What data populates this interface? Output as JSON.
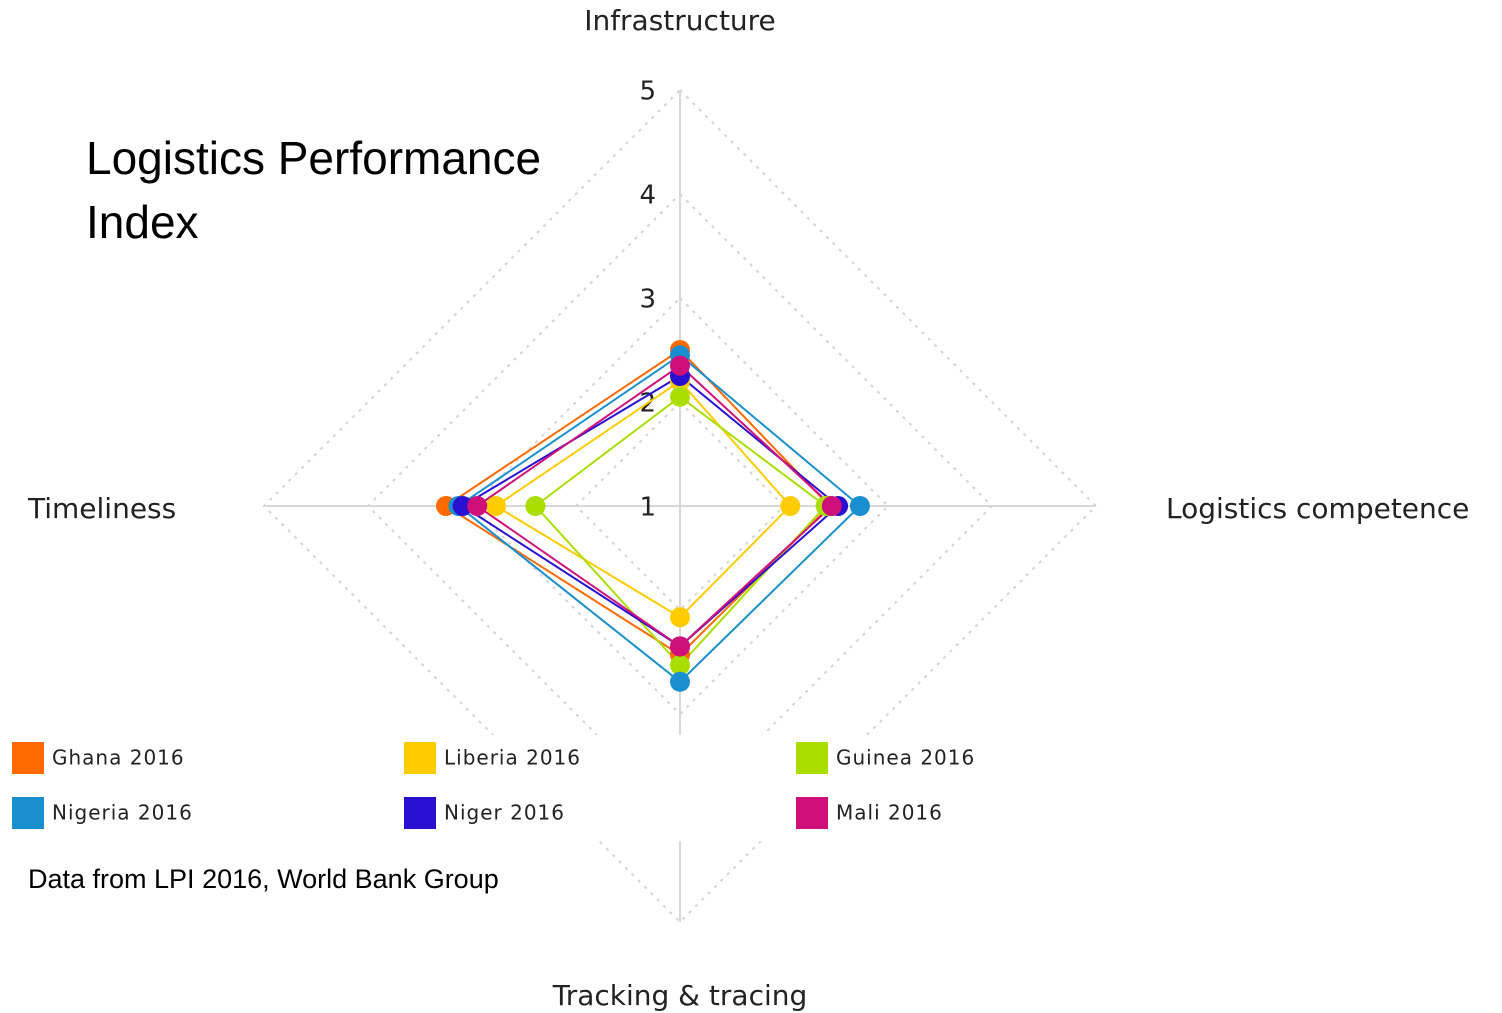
{
  "chart_data": {
    "type": "radar",
    "title": "Logistics Performance Index",
    "source": "Data from LPI 2016, World Bank Group",
    "categories": [
      "Infrastructure",
      "Logistics competence",
      "Tracking & tracing",
      "Timeliness"
    ],
    "rlim": [
      1,
      5
    ],
    "rticks": [
      1,
      2,
      3,
      4,
      5
    ],
    "grid": true,
    "series": [
      {
        "name": "Ghana 2016",
        "color": "#ff6a00",
        "values": [
          2.5,
          2.44,
          2.43,
          3.25
        ]
      },
      {
        "name": "Liberia 2016",
        "color": "#ffcc00",
        "values": [
          2.2,
          2.06,
          2.07,
          2.77
        ]
      },
      {
        "name": "Guinea 2016",
        "color": "#aadd00",
        "values": [
          2.05,
          2.4,
          2.53,
          2.39
        ]
      },
      {
        "name": "Nigeria 2016",
        "color": "#1a8fd0",
        "values": [
          2.45,
          2.73,
          2.69,
          3.13
        ]
      },
      {
        "name": "Niger 2016",
        "color": "#2a10d0",
        "values": [
          2.25,
          2.52,
          2.35,
          3.09
        ]
      },
      {
        "name": "Mali 2016",
        "color": "#d0107a",
        "values": [
          2.35,
          2.46,
          2.35,
          2.95
        ]
      }
    ]
  }
}
